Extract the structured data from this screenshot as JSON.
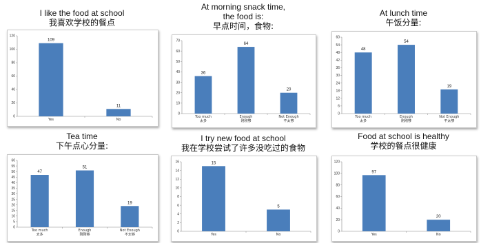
{
  "bar_color": "#4a7ebb",
  "chart_data": [
    {
      "type": "bar",
      "title_lines": [
        "I like the food at school",
        "我喜欢学校的餐点"
      ],
      "categories": [
        [
          "Yes"
        ],
        [
          "No"
        ]
      ],
      "values": [
        109,
        11
      ],
      "ylim": [
        0,
        120
      ],
      "yticks": [
        0,
        20,
        40,
        60,
        80,
        100,
        120
      ]
    },
    {
      "type": "bar",
      "title_lines": [
        "At morning snack time,",
        "the food is:",
        "早点时间，食物:"
      ],
      "categories": [
        [
          "Too much",
          "太多"
        ],
        [
          "Enough",
          "刚刚够"
        ],
        [
          "Not Enough",
          "不太够"
        ]
      ],
      "values": [
        36,
        64,
        20
      ],
      "ylim": [
        0,
        70
      ],
      "yticks": [
        0,
        10,
        20,
        30,
        40,
        50,
        60,
        70
      ]
    },
    {
      "type": "bar",
      "title_lines": [
        "At lunch time",
        "午饭分量:"
      ],
      "categories": [
        [
          "Too much",
          "太多"
        ],
        [
          "Enough",
          "刚刚够"
        ],
        [
          "Not Enough",
          "不太够"
        ]
      ],
      "values": [
        48,
        54,
        19
      ],
      "ylim": [
        0,
        60
      ],
      "yticks": [
        0,
        6,
        12,
        18,
        24,
        30,
        36,
        42,
        48,
        54,
        60
      ]
    },
    {
      "type": "bar",
      "title_lines": [
        "Tea time",
        "下午点心分量:"
      ],
      "categories": [
        [
          "Too much",
          "太多"
        ],
        [
          "Enough",
          "刚刚够"
        ],
        [
          "Not Enough",
          "不太够"
        ]
      ],
      "values": [
        47,
        51,
        19
      ],
      "ylim": [
        0,
        60
      ],
      "yticks": [
        0,
        5,
        10,
        15,
        20,
        25,
        30,
        35,
        40,
        45,
        50,
        55,
        60
      ]
    },
    {
      "type": "bar",
      "title_lines": [
        "I try new food at school",
        "我在学校尝试了许多没吃过的食物"
      ],
      "categories": [
        [
          "Yes"
        ],
        [
          "No"
        ]
      ],
      "values": [
        15,
        5
      ],
      "ylim": [
        0,
        16
      ],
      "yticks": [
        0,
        2,
        4,
        6,
        8,
        10,
        12,
        14,
        16
      ]
    },
    {
      "type": "bar",
      "title_lines": [
        "Food at school is healthy",
        "学校的餐点很健康"
      ],
      "categories": [
        [
          "Yes"
        ],
        [
          "No"
        ]
      ],
      "values": [
        97,
        20
      ],
      "ylim": [
        0,
        120
      ],
      "yticks": [
        0,
        20,
        40,
        60,
        80,
        100,
        120
      ]
    }
  ]
}
